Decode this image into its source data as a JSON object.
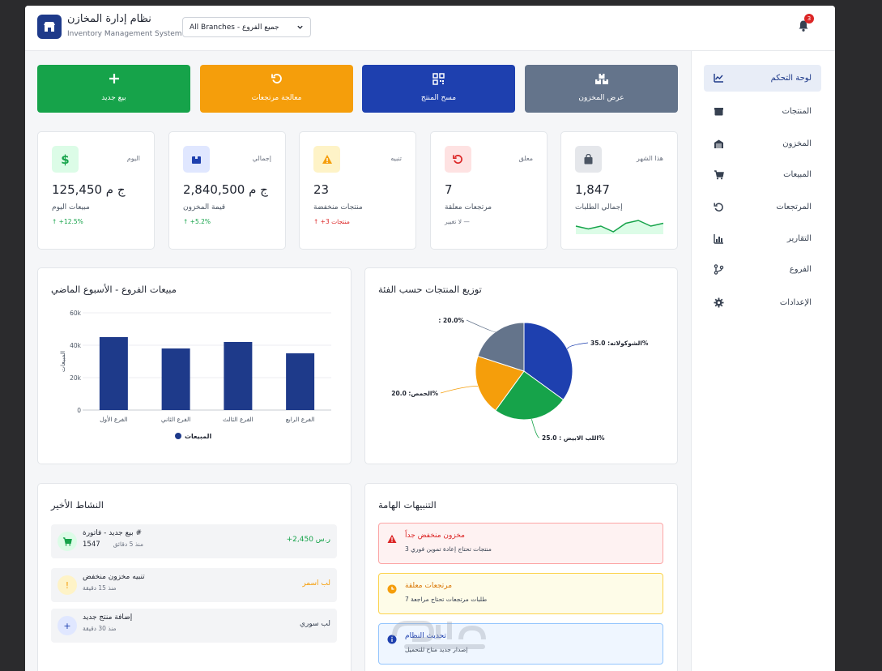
{
  "header": {
    "app_title": "نظام إدارة المخازن",
    "app_subtitle": "Inventory Management System",
    "branch_select": "All Branches - جميع الفروع",
    "notification_count": "3"
  },
  "sidebar": {
    "items": [
      {
        "label": "لوحة التحكم",
        "icon": "chart-line-icon",
        "active": true
      },
      {
        "label": "المنتجات",
        "icon": "box-icon"
      },
      {
        "label": "المخزون",
        "icon": "warehouse-icon"
      },
      {
        "label": "المبيعات",
        "icon": "cart-icon"
      },
      {
        "label": "المرتجعات",
        "icon": "undo-icon"
      },
      {
        "label": "التقارير",
        "icon": "bar-chart-icon"
      },
      {
        "label": "الفروع",
        "icon": "branch-icon"
      },
      {
        "label": "الإعدادات",
        "icon": "gear-icon"
      }
    ]
  },
  "actions": [
    {
      "label": "بيع جديد",
      "icon": "plus-icon",
      "color": "#16a34a"
    },
    {
      "label": "معالجة مرتجعات",
      "icon": "undo-icon",
      "color": "#f59e0b"
    },
    {
      "label": "مسح المنتج",
      "icon": "qr-icon",
      "color": "#1e40af"
    },
    {
      "label": "عرض المخزون",
      "icon": "boxes-icon",
      "color": "#64748b"
    }
  ],
  "stats": [
    {
      "label": "اليوم",
      "value": "125,450 ج م",
      "desc": "مبيعات اليوم",
      "change": "+12.5%",
      "change_color": "#16a34a",
      "icon": "dollar-icon"
    },
    {
      "label": "إجمالي",
      "value": "2,840,500 ج م",
      "desc": "قيمة المخزون",
      "change": "+5.2%",
      "change_color": "#16a34a",
      "icon": "box-icon"
    },
    {
      "label": "تنبيه",
      "value": "23",
      "desc": "منتجات منخفضة",
      "change": "+3 منتجات",
      "change_color": "#dc2626",
      "icon": "warning-icon"
    },
    {
      "label": "معلق",
      "value": "7",
      "desc": "مرتجعات معلقة",
      "change": "لا تغيير —",
      "change_color": "#6b7280",
      "icon": "undo-icon"
    },
    {
      "label": "هذا الشهر",
      "value": "1,847",
      "desc": "إجمالي الطلبات",
      "change": "",
      "change_color": "#16a34a",
      "icon": "bag-icon",
      "sparkline": [
        8,
        7,
        8,
        6,
        9,
        10,
        8,
        9
      ]
    }
  ],
  "branch_sales": {
    "title": "مبيعات الفروع - الأسبوع الماضي",
    "chart_data": {
      "type": "bar",
      "categories": [
        "الفرع الأول",
        "الفرع الثاني",
        "الفرع الثالث",
        "الفرع الرابع"
      ],
      "series": [
        {
          "name": "المبيعات",
          "values": [
            45000,
            38000,
            42000,
            35000
          ]
        }
      ],
      "ylabel": "المبيعات",
      "ylim": [
        0,
        60000
      ],
      "y_ticks": [
        "0",
        "20k",
        "40k",
        "60k"
      ],
      "color": "#1e3a8a",
      "legend": "bottom"
    }
  },
  "category_dist": {
    "title": "توزيع المنتجات حسب الفئة",
    "chart_data": {
      "type": "pie",
      "labels": [
        "الشوكولاته: 35.0%",
        "اللب الابيض : 25.0%",
        "الحمص: 20.0%",
        ": 20.0%"
      ],
      "values": [
        35,
        25,
        20,
        20
      ],
      "colors": [
        "#1e40af",
        "#16a34a",
        "#f59e0b",
        "#64748b"
      ]
    }
  },
  "activity": {
    "title": "النشاط الأخير",
    "rows": [
      {
        "title": "بيع جديد - فاتورة #",
        "sub": "منذ 5 دقائق",
        "extra": "1547",
        "amount": "+2,450 ر.س",
        "amount_color": "#16a34a",
        "icon": "cart-icon",
        "icon_bg": "#dcfce7",
        "icon_color": "#16a34a"
      },
      {
        "title": "تنبيه مخزون منخفض",
        "sub": "منذ 15 دقيقة",
        "extra": "",
        "amount": "لب اسمر",
        "amount_color": "#f59e0b",
        "icon": "exclamation-icon",
        "icon_bg": "#fef3c7",
        "icon_color": "#f59e0b"
      },
      {
        "title": "إضافة منتج جديد",
        "sub": "منذ 30 دقيقة",
        "extra": "",
        "amount": "لب سوري",
        "amount_color": "#374151",
        "icon": "plus-icon",
        "icon_bg": "#e0e7ff",
        "icon_color": "#1e40af"
      }
    ]
  },
  "alerts": {
    "title": "التنبيهات الهامة",
    "items": [
      {
        "title": "مخزون منخفض جداً",
        "desc": "3 منتجات تحتاج إعادة تموين فوري",
        "bg": "#fef2f2",
        "border": "#fca5a5",
        "color": "#dc2626",
        "icon": "warning-icon"
      },
      {
        "title": "مرتجعات معلقة",
        "desc": "7 طلبات مرتجعات تحتاج مراجعة",
        "bg": "#fefce8",
        "border": "#fcd34d",
        "color": "#d97706",
        "icon": "clock-icon"
      },
      {
        "title": "تحديث النظام",
        "desc": "إصدار جديد متاح للتحميل",
        "bg": "#eff6ff",
        "border": "#93c5fd",
        "color": "#1e40af",
        "icon": "info-icon"
      }
    ]
  }
}
